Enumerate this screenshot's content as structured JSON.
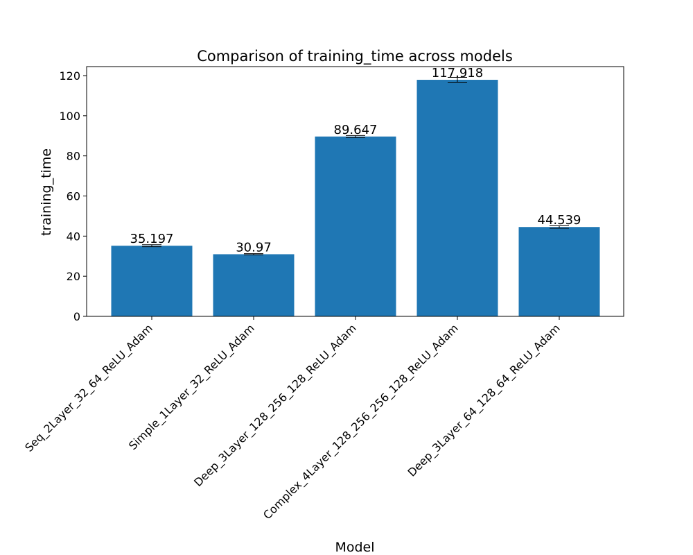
{
  "chart_data": {
    "type": "bar",
    "title": "Comparison of training_time across models",
    "xlabel": "Model",
    "ylabel": "training_time",
    "categories": [
      "Seq_2Layer_32_64_ReLU_Adam",
      "Simple_1Layer_32_ReLU_Adam",
      "Deep_3Layer_128_256_128_ReLU_Adam",
      "Complex_4Layer_128_256_256_128_ReLU_Adam",
      "Deep_3Layer_64_128_64_ReLU_Adam"
    ],
    "values": [
      35.197,
      30.97,
      89.647,
      117.918,
      44.539
    ],
    "value_labels": [
      "35.197",
      "30.97",
      "89.647",
      "117.918",
      "44.539"
    ],
    "error": [
      0.5,
      0.3,
      0.5,
      1.2,
      0.6
    ],
    "ylim": [
      0,
      124.5
    ],
    "yticks": [
      0,
      20,
      40,
      60,
      80,
      100,
      120
    ],
    "bar_color": "#1f77b4",
    "grid": false,
    "legend": false
  }
}
